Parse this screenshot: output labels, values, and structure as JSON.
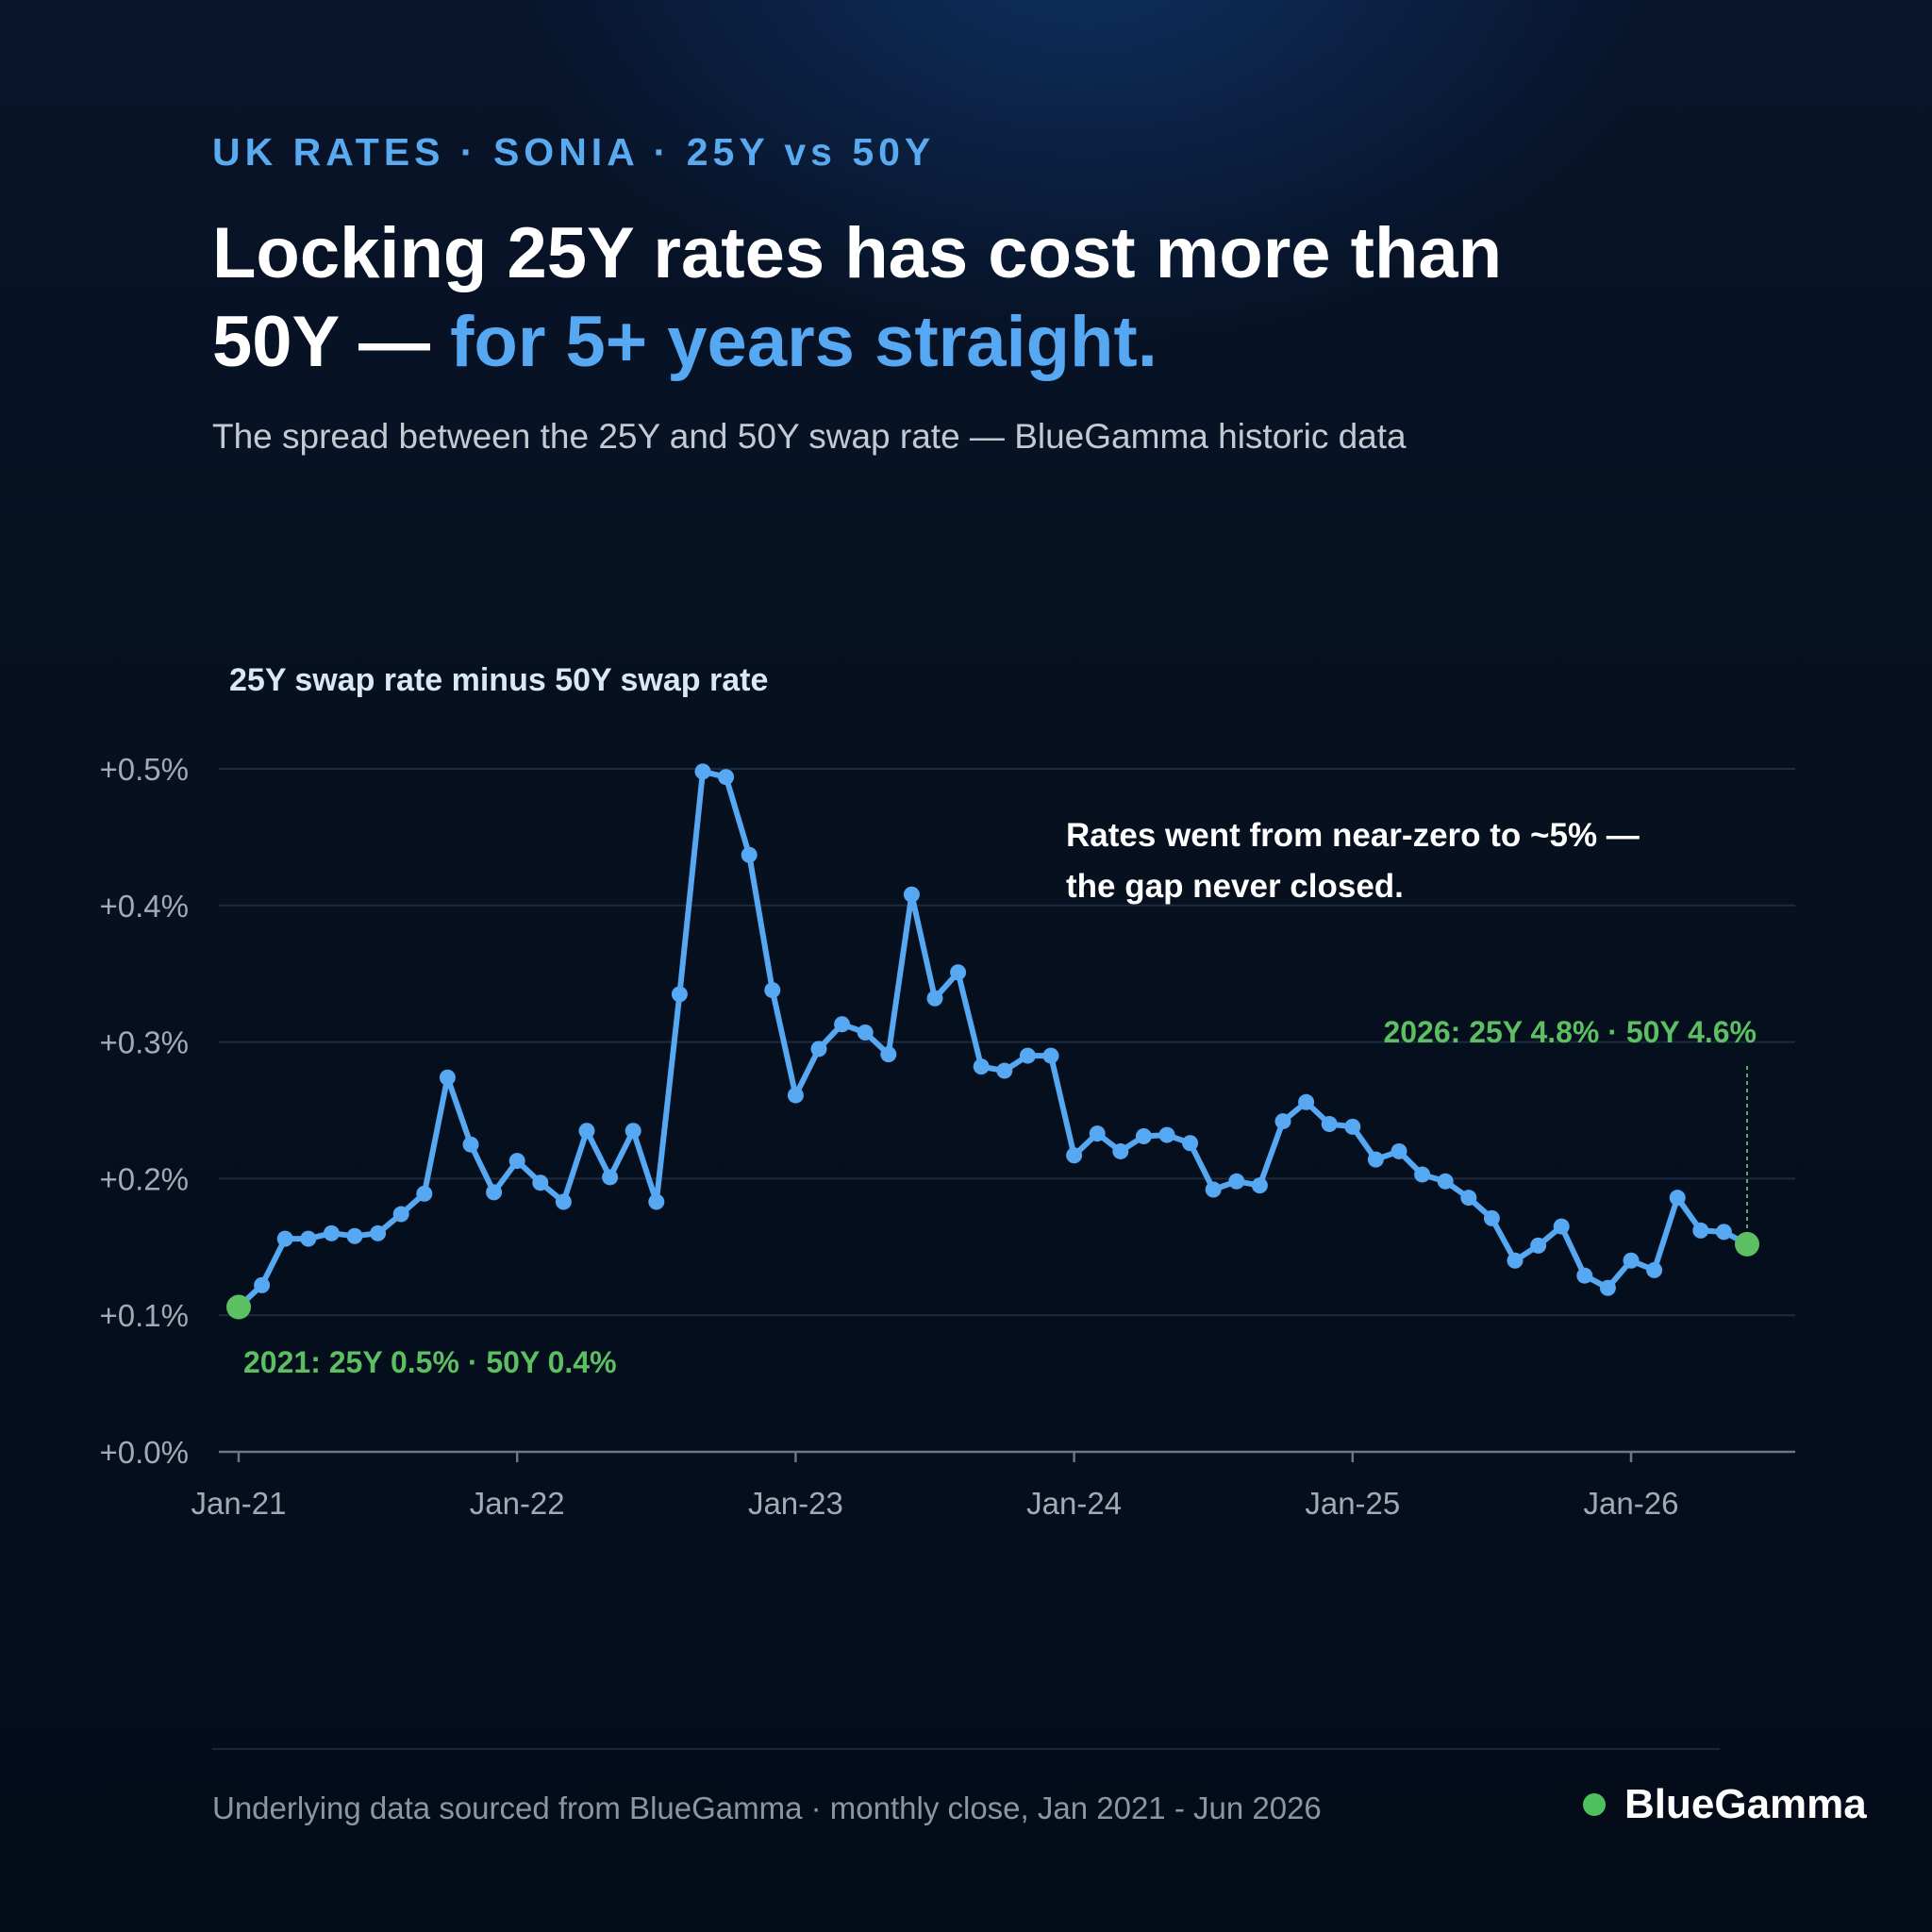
{
  "header": {
    "eyebrow": "UK RATES · SONIA · 25Y vs 50Y",
    "headline_main": "Locking 25Y rates has cost more than 50Y — ",
    "headline_accent": "for 5+ years straight.",
    "subtitle": "The spread between the 25Y and 50Y swap rate — BlueGamma historic data"
  },
  "colors": {
    "accent": "#56a8f2",
    "line": "#56a8f2",
    "endpoint": "#5cbf62",
    "grid": "#1e2a3d",
    "annotation_green": "#5cbf62"
  },
  "chart_data": {
    "type": "line",
    "title": "25Y swap rate minus 50Y swap rate",
    "ylim": [
      0.0,
      0.5
    ],
    "y_ticks": [
      0.0,
      0.1,
      0.2,
      0.3,
      0.4,
      0.5
    ],
    "y_tick_labels": [
      "+0.0%",
      "+0.1%",
      "+0.2%",
      "+0.3%",
      "+0.4%",
      "+0.5%"
    ],
    "x_tick_labels": [
      "Jan-21",
      "Jan-22",
      "Jan-23",
      "Jan-24",
      "Jan-25",
      "Jan-26"
    ],
    "grid": true,
    "series": [
      {
        "values": [
          0.106,
          0.122,
          0.156,
          0.156,
          0.16,
          0.158,
          0.16,
          0.174,
          0.189,
          0.274,
          0.225,
          0.19,
          0.213,
          0.197,
          0.183,
          0.235,
          0.201,
          0.235,
          0.183,
          0.335,
          0.498,
          0.494,
          0.437,
          0.338,
          0.261,
          0.295,
          0.313,
          0.307,
          0.291,
          0.408,
          0.332,
          0.351,
          0.282,
          0.279,
          0.29,
          0.29,
          0.217,
          0.233,
          0.22,
          0.231,
          0.232,
          0.226,
          0.192,
          0.198,
          0.195,
          0.242,
          0.256,
          0.24,
          0.238,
          0.214,
          0.22,
          0.203,
          0.198,
          0.186,
          0.171,
          0.14,
          0.151,
          0.165,
          0.129,
          0.12,
          0.14,
          0.133,
          0.186,
          0.162,
          0.161,
          0.152
        ]
      }
    ],
    "annotations": {
      "start": "2021: 25Y 0.5% · 50Y 0.4%",
      "end": "2026: 25Y 4.8% · 50Y 4.6%",
      "callout_line1": "Rates went from near-zero to ~5% —",
      "callout_line2": "the gap never closed."
    }
  },
  "footer": {
    "note": "Underlying data sourced from BlueGamma · monthly close, Jan 2021 - Jun 2026",
    "brand": "BlueGamma"
  }
}
